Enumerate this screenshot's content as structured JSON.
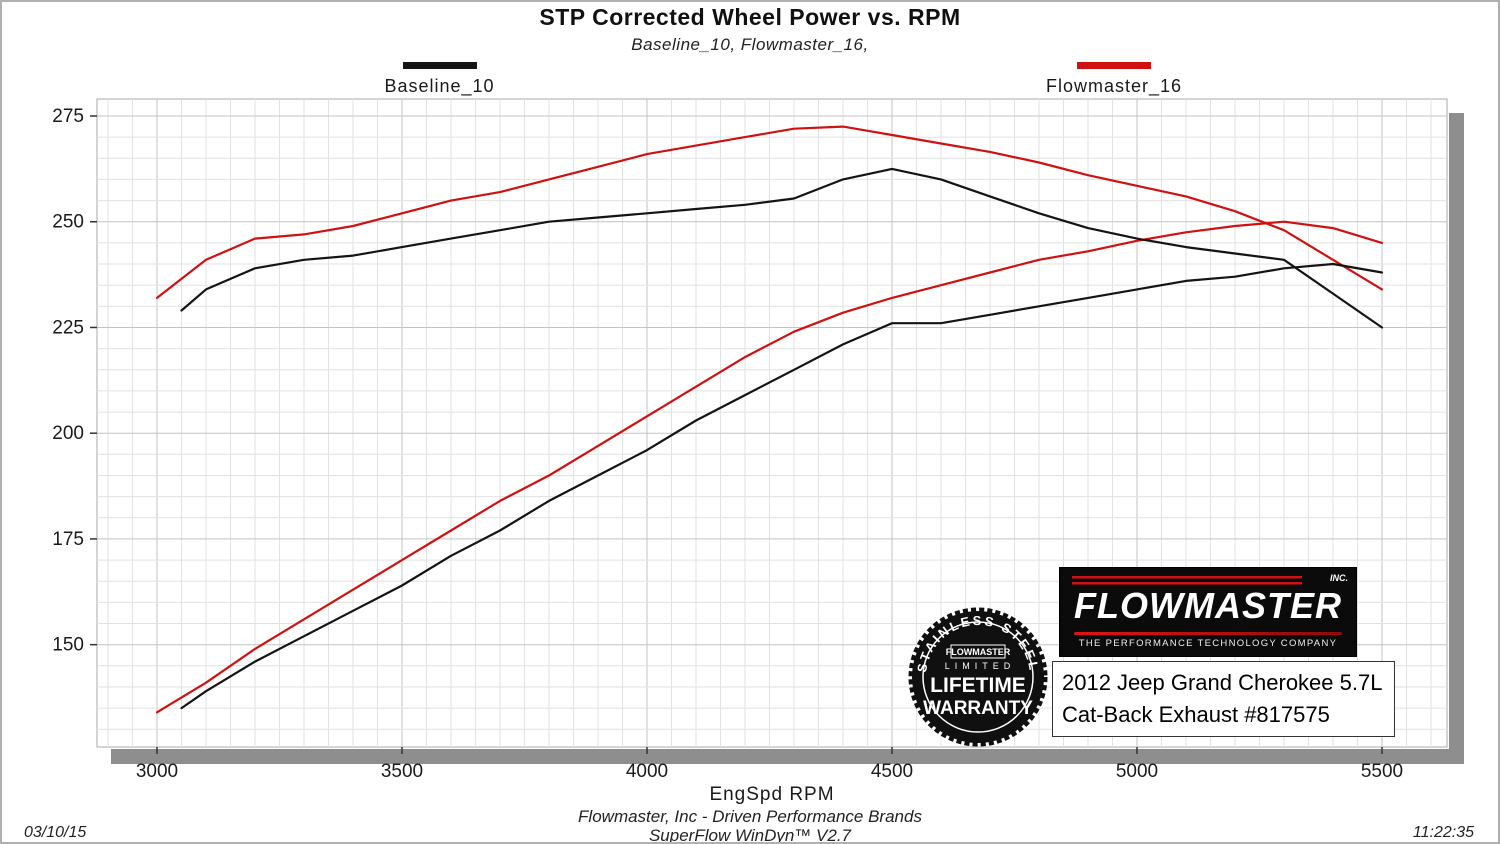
{
  "title": "STP Corrected Wheel Power vs. RPM",
  "subtitle": "Baseline_10, Flowmaster_16,",
  "legend": [
    {
      "label": "Baseline_10",
      "color": "#141414"
    },
    {
      "label": "Flowmaster_16",
      "color": "#cf1111"
    }
  ],
  "chart_data": {
    "type": "line",
    "title": "STP Corrected Wheel Power vs. RPM",
    "xlabel": "EngSpd RPM",
    "ylabel": "",
    "x_ticks": [
      3000,
      3500,
      4000,
      4500,
      5000,
      5500
    ],
    "y_ticks": [
      150,
      175,
      200,
      225,
      250,
      275
    ],
    "x_range": [
      2880,
      5630
    ],
    "y_range": [
      126,
      279
    ],
    "grid": true,
    "legend_position": "top",
    "series": [
      {
        "name": "Flowmaster_16",
        "curve": "upper",
        "color": "#cf1111",
        "x": [
          3000,
          3100,
          3200,
          3300,
          3400,
          3500,
          3600,
          3700,
          3800,
          3900,
          4000,
          4100,
          4200,
          4300,
          4400,
          4500,
          4600,
          4700,
          4800,
          4900,
          5000,
          5100,
          5200,
          5300,
          5400,
          5500
        ],
        "y": [
          232,
          241,
          246,
          247,
          249,
          252,
          255,
          257,
          260,
          263,
          266,
          268,
          270,
          272,
          272.5,
          270.5,
          268.5,
          266.5,
          264,
          261,
          258.5,
          256,
          252.5,
          248,
          241,
          234
        ]
      },
      {
        "name": "Flowmaster_16",
        "curve": "lower",
        "color": "#cf1111",
        "x": [
          3000,
          3100,
          3200,
          3300,
          3400,
          3500,
          3600,
          3700,
          3800,
          3900,
          4000,
          4100,
          4200,
          4300,
          4400,
          4500,
          4600,
          4700,
          4800,
          4900,
          5000,
          5100,
          5200,
          5300,
          5400,
          5500
        ],
        "y": [
          134,
          141,
          149,
          156,
          163,
          170,
          177,
          184,
          190,
          197,
          204,
          211,
          218,
          224,
          228.5,
          232,
          235,
          238,
          241,
          243,
          245.5,
          247.5,
          249,
          250,
          248.5,
          245
        ]
      },
      {
        "name": "Baseline_10",
        "curve": "upper",
        "color": "#141414",
        "x": [
          3050,
          3100,
          3200,
          3300,
          3400,
          3500,
          3600,
          3700,
          3800,
          3900,
          4000,
          4100,
          4200,
          4300,
          4400,
          4500,
          4600,
          4700,
          4800,
          4900,
          5000,
          5100,
          5200,
          5300,
          5400,
          5500
        ],
        "y": [
          229,
          234,
          239,
          241,
          242,
          244,
          246,
          248,
          250,
          251,
          252,
          253,
          254,
          255.5,
          260,
          262.5,
          260,
          256,
          252,
          248.5,
          246,
          244,
          242.5,
          241,
          233,
          225
        ]
      },
      {
        "name": "Baseline_10",
        "curve": "lower",
        "color": "#141414",
        "x": [
          3050,
          3100,
          3200,
          3300,
          3400,
          3500,
          3600,
          3700,
          3800,
          3900,
          4000,
          4100,
          4200,
          4300,
          4400,
          4500,
          4600,
          4700,
          4800,
          4900,
          5000,
          5100,
          5200,
          5300,
          5400,
          5500
        ],
        "y": [
          135,
          139,
          146,
          152,
          158,
          164,
          171,
          177,
          184,
          190,
          196,
          203,
          209,
          215,
          221,
          226,
          226,
          228,
          230,
          232,
          234,
          236,
          237,
          239,
          240,
          238
        ]
      }
    ]
  },
  "overlay": {
    "vehicle_line1": "2012 Jeep Grand Cherokee 5.7L",
    "vehicle_line2": "Cat-Back Exhaust #817575",
    "logo": {
      "brand": "FLOWMASTER",
      "inc": "INC.",
      "tagline": "THE PERFORMANCE TECHNOLOGY COMPANY"
    },
    "badge": {
      "top_text": "STAINLESS STEEL",
      "brand": "FLOWMASTER",
      "limited": "LIMITED",
      "line1": "LIFETIME",
      "line2": "WARRANTY"
    }
  },
  "footer": {
    "line1": "Flowmaster, Inc - Driven Performance Brands",
    "line2": "SuperFlow WinDyn™ V2.7",
    "date": "03/10/15",
    "time": "11:22:35"
  }
}
